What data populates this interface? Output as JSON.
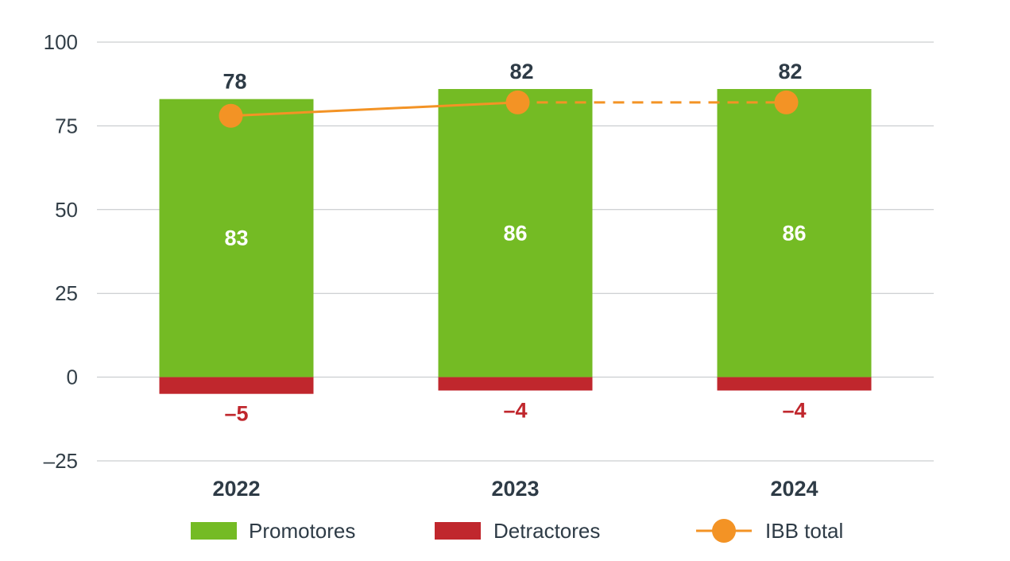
{
  "chart_data": {
    "type": "bar",
    "categories": [
      "2022",
      "2023",
      "2024"
    ],
    "series": [
      {
        "name": "Promotores",
        "kind": "bar",
        "values": [
          83,
          86,
          86
        ],
        "color": "#74bb24"
      },
      {
        "name": "Detractores",
        "kind": "bar",
        "values": [
          -5,
          -4,
          -4
        ],
        "color": "#c0272d"
      },
      {
        "name": "IBB total",
        "kind": "line",
        "values": [
          78,
          82,
          82
        ],
        "color": "#f39325",
        "dashed_segments": [
          1
        ]
      }
    ],
    "data_labels": {
      "promotores": [
        "83",
        "86",
        "86"
      ],
      "detractores": [
        "–5",
        "–4",
        "–4"
      ],
      "ibb_total": [
        "78",
        "82",
        "82"
      ]
    },
    "yticks": [
      100,
      75,
      50,
      25,
      0,
      -25
    ],
    "ytick_labels": [
      "100",
      "75",
      "50",
      "25",
      "0",
      "–25"
    ],
    "ylim": [
      -25,
      100
    ],
    "grid": true,
    "legend_position": "bottom",
    "title": "",
    "xlabel": "",
    "ylabel": ""
  },
  "legend": {
    "promotores": "Promotores",
    "detractores": "Detractores",
    "ibb_total": "IBB total"
  }
}
